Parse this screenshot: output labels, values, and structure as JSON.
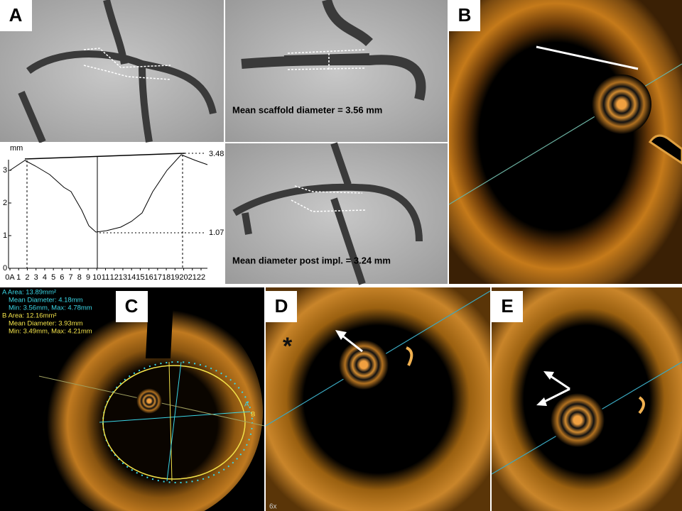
{
  "panels": {
    "a": {
      "label": "A",
      "angio_top_caption": "Mean scaffold diameter = 3.56 mm",
      "angio_bottom_caption": "Mean diameter post impl. = 3.24 mm",
      "plot": {
        "unit": "mm",
        "yticks": [
          "0",
          "1",
          "2",
          "3"
        ],
        "xticks": [
          "0A",
          "1",
          "2",
          "3",
          "4",
          "5",
          "6",
          "7",
          "8",
          "9",
          "10",
          "11",
          "12",
          "13",
          "14",
          "15",
          "16",
          "17",
          "18",
          "19",
          "20",
          "21",
          "22"
        ],
        "max_label": "3.48",
        "min_label": "1.07"
      }
    },
    "b": {
      "label": "B"
    },
    "c": {
      "label": "C",
      "measurements": [
        {
          "text": "A Area: 13.89mm²",
          "color": "#3ad6e6"
        },
        {
          "text": "Mean Diameter:  4.18mm",
          "color": "#3ad6e6"
        },
        {
          "text": "Min:  3.56mm, Max:  4.78mm",
          "color": "#3ad6e6"
        },
        {
          "text": "B Area: 12.16mm²",
          "color": "#f2e24a"
        },
        {
          "text": "Mean Diameter:  3.93mm",
          "color": "#f2e24a"
        },
        {
          "text": "Min:  3.49mm, Max:  4.21mm",
          "color": "#f2e24a"
        }
      ],
      "markers": [
        "A",
        "B"
      ]
    },
    "d": {
      "label": "D",
      "asterisk": "*",
      "magnification": "6x"
    },
    "e": {
      "label": "E"
    }
  }
}
